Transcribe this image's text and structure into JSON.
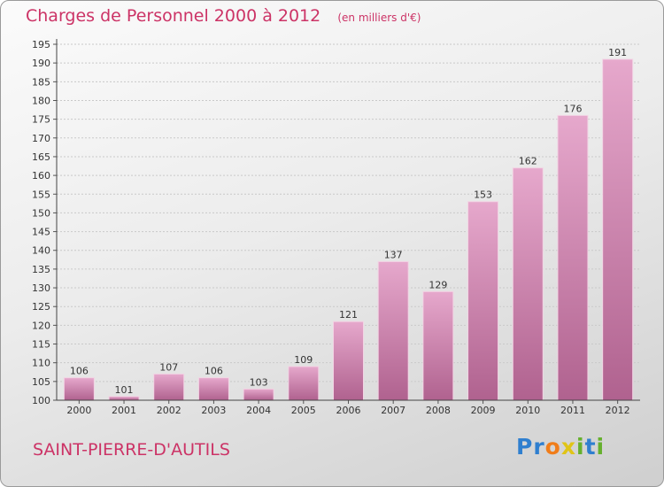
{
  "chart_data": {
    "type": "bar",
    "title": "Charges de Personnel 2000 à 2012",
    "subtitle": "(en milliers d'€)",
    "categories": [
      "2000",
      "2001",
      "2002",
      "2003",
      "2004",
      "2005",
      "2006",
      "2007",
      "2008",
      "2009",
      "2010",
      "2011",
      "2012"
    ],
    "values": [
      106,
      101,
      107,
      106,
      103,
      109,
      121,
      137,
      129,
      153,
      162,
      176,
      191
    ],
    "ylim": [
      100,
      195
    ],
    "yticks": [
      100,
      105,
      110,
      115,
      120,
      125,
      130,
      135,
      140,
      145,
      150,
      155,
      160,
      165,
      170,
      175,
      180,
      185,
      190,
      195
    ],
    "grid": true,
    "bar_color": "#d98fb8"
  },
  "footer": {
    "commune": "SAINT-PIERRE-D'AUTILS",
    "logo_letters": [
      "P",
      "r",
      "o",
      "x",
      "i",
      "t",
      "i"
    ],
    "logo_colors": [
      "#2f7fcf",
      "#2f7fcf",
      "#f07d1a",
      "#e0c417",
      "#66b02d",
      "#2f7fcf",
      "#66b02d"
    ]
  }
}
